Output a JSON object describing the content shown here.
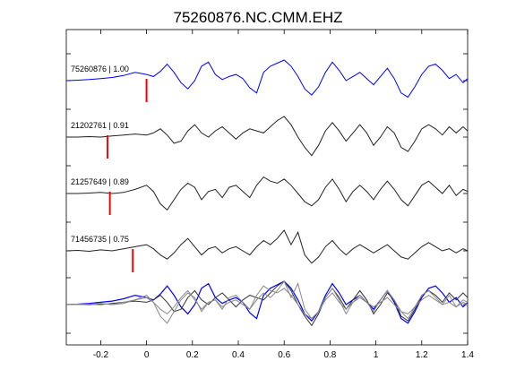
{
  "chart_data": {
    "type": "line",
    "title": "75260876.NC.CMM.EHZ",
    "xlabel": "",
    "ylabel": "",
    "xlim": [
      -0.35,
      1.4
    ],
    "x_ticks": [
      "-0.2",
      "0",
      "0.2",
      "0.4",
      "0.6",
      "0.8",
      "1",
      "1.2",
      "1.4"
    ],
    "x_tick_values": [
      -0.2,
      0,
      0.2,
      0.4,
      0.6,
      0.8,
      1.0,
      1.2,
      1.4
    ],
    "grid": false,
    "legend": "none",
    "colors": {
      "master": "#0000ff",
      "other": "#222222",
      "overlay_gray": "#8a8a8a",
      "pick": "#ff0000"
    },
    "series": [
      {
        "name": "75260876 | 1.00",
        "color": "#0000ff",
        "pick_x": 0.0,
        "x": [
          -0.35,
          -0.3,
          -0.25,
          -0.2,
          -0.15,
          -0.1,
          -0.05,
          0.0,
          0.03,
          0.06,
          0.09,
          0.12,
          0.15,
          0.18,
          0.21,
          0.24,
          0.27,
          0.3,
          0.33,
          0.36,
          0.39,
          0.42,
          0.45,
          0.48,
          0.51,
          0.54,
          0.57,
          0.6,
          0.63,
          0.66,
          0.69,
          0.72,
          0.75,
          0.78,
          0.81,
          0.84,
          0.87,
          0.9,
          0.93,
          0.96,
          0.99,
          1.02,
          1.05,
          1.08,
          1.11,
          1.14,
          1.17,
          1.2,
          1.23,
          1.26,
          1.29,
          1.32,
          1.35,
          1.38,
          1.4
        ],
        "y": [
          0.0,
          0.02,
          0.05,
          0.1,
          0.15,
          0.25,
          0.4,
          0.3,
          0.2,
          0.45,
          0.8,
          0.4,
          -0.1,
          -0.4,
          0.0,
          0.7,
          0.9,
          0.3,
          0.05,
          0.2,
          0.3,
          0.1,
          -0.35,
          -0.6,
          0.4,
          0.7,
          0.85,
          1.0,
          0.7,
          0.2,
          -0.4,
          -0.7,
          -0.3,
          0.4,
          0.9,
          0.5,
          0.0,
          0.2,
          0.4,
          0.1,
          -0.2,
          0.2,
          0.6,
          0.1,
          -0.6,
          -0.8,
          -0.3,
          0.3,
          0.7,
          0.8,
          0.5,
          0.1,
          0.3,
          -0.1,
          0.1
        ]
      },
      {
        "name": "21202761 | 0.91",
        "color": "#222222",
        "pick_x": -0.17,
        "x": [
          -0.35,
          -0.3,
          -0.25,
          -0.2,
          -0.15,
          -0.1,
          -0.05,
          0.0,
          0.03,
          0.06,
          0.09,
          0.12,
          0.15,
          0.18,
          0.21,
          0.24,
          0.27,
          0.3,
          0.33,
          0.36,
          0.39,
          0.42,
          0.45,
          0.48,
          0.51,
          0.54,
          0.57,
          0.6,
          0.63,
          0.66,
          0.69,
          0.72,
          0.75,
          0.78,
          0.81,
          0.84,
          0.87,
          0.9,
          0.93,
          0.96,
          0.99,
          1.02,
          1.05,
          1.08,
          1.11,
          1.14,
          1.17,
          1.2,
          1.23,
          1.26,
          1.29,
          1.32,
          1.35,
          1.38,
          1.4
        ],
        "y": [
          0.0,
          0.0,
          0.02,
          0.0,
          0.05,
          0.1,
          0.15,
          0.1,
          0.2,
          0.4,
          0.1,
          -0.3,
          -0.2,
          0.3,
          0.6,
          0.2,
          0.0,
          0.3,
          0.5,
          0.2,
          -0.1,
          0.2,
          0.4,
          0.3,
          0.2,
          0.5,
          0.8,
          1.0,
          0.6,
          0.0,
          -0.5,
          -0.9,
          -0.4,
          0.3,
          0.7,
          0.3,
          -0.2,
          0.2,
          0.6,
          0.2,
          -0.4,
          0.0,
          0.5,
          0.2,
          -0.5,
          -0.7,
          -0.2,
          0.4,
          0.6,
          0.4,
          0.1,
          0.5,
          0.2,
          0.5,
          0.3
        ]
      },
      {
        "name": "21257649 | 0.89",
        "color": "#222222",
        "pick_x": -0.16,
        "x": [
          -0.35,
          -0.3,
          -0.25,
          -0.2,
          -0.15,
          -0.1,
          -0.05,
          0.0,
          0.03,
          0.06,
          0.09,
          0.12,
          0.15,
          0.18,
          0.21,
          0.24,
          0.27,
          0.3,
          0.33,
          0.36,
          0.39,
          0.42,
          0.45,
          0.48,
          0.51,
          0.54,
          0.57,
          0.6,
          0.63,
          0.66,
          0.69,
          0.72,
          0.75,
          0.78,
          0.81,
          0.84,
          0.87,
          0.9,
          0.93,
          0.96,
          0.99,
          1.02,
          1.05,
          1.08,
          1.11,
          1.14,
          1.17,
          1.2,
          1.23,
          1.26,
          1.29,
          1.32,
          1.35,
          1.38,
          1.4
        ],
        "y": [
          0.0,
          0.0,
          0.02,
          0.05,
          0.0,
          0.05,
          0.2,
          0.4,
          0.1,
          -0.5,
          -0.8,
          -0.3,
          0.2,
          0.5,
          0.3,
          -0.3,
          0.1,
          0.2,
          -0.2,
          0.3,
          0.4,
          0.1,
          -0.2,
          0.4,
          0.8,
          0.6,
          0.5,
          0.7,
          0.4,
          0.0,
          -0.4,
          -0.6,
          -0.3,
          0.3,
          0.7,
          0.2,
          -0.4,
          0.1,
          0.4,
          0.1,
          -0.3,
          0.2,
          0.6,
          0.2,
          -0.3,
          -0.6,
          -0.1,
          0.4,
          0.6,
          0.3,
          0.0,
          0.4,
          -0.1,
          0.2,
          0.1
        ]
      },
      {
        "name": "71456735 | 0.75",
        "color": "#222222",
        "pick_x": -0.06,
        "x": [
          -0.35,
          -0.3,
          -0.25,
          -0.2,
          -0.15,
          -0.1,
          -0.05,
          0.0,
          0.03,
          0.06,
          0.09,
          0.12,
          0.15,
          0.18,
          0.21,
          0.24,
          0.27,
          0.3,
          0.33,
          0.36,
          0.39,
          0.42,
          0.45,
          0.48,
          0.51,
          0.54,
          0.57,
          0.6,
          0.63,
          0.66,
          0.69,
          0.72,
          0.75,
          0.78,
          0.81,
          0.84,
          0.87,
          0.9,
          0.93,
          0.96,
          0.99,
          1.02,
          1.05,
          1.08,
          1.11,
          1.14,
          1.17,
          1.2,
          1.23,
          1.26,
          1.29,
          1.32,
          1.35,
          1.38,
          1.4
        ],
        "y": [
          0.0,
          0.02,
          -0.02,
          0.05,
          0.0,
          0.1,
          0.2,
          0.3,
          0.1,
          -0.2,
          -0.4,
          -0.1,
          0.3,
          0.6,
          0.2,
          -0.2,
          0.1,
          0.2,
          -0.1,
          0.1,
          0.2,
          0.0,
          -0.2,
          0.2,
          0.5,
          0.3,
          0.6,
          1.0,
          0.3,
          0.9,
          -0.2,
          -0.6,
          -0.3,
          0.2,
          0.5,
          0.1,
          -0.2,
          0.1,
          0.3,
          0.1,
          -0.1,
          0.1,
          0.3,
          0.0,
          -0.3,
          -0.4,
          -0.1,
          0.2,
          0.4,
          0.2,
          0.0,
          0.1,
          -0.1,
          0.1,
          0.0
        ]
      }
    ]
  }
}
